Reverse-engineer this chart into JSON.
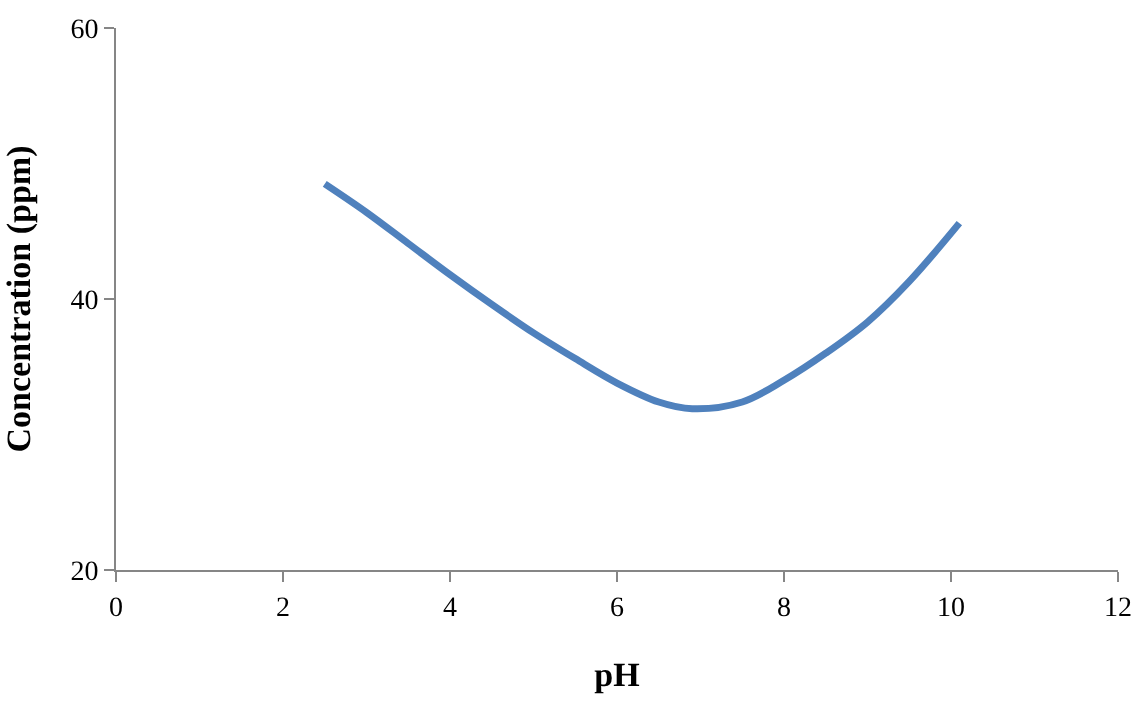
{
  "chart_data": {
    "type": "line",
    "xlabel": "pH",
    "ylabel": "Concentration (ppm)",
    "xlim": [
      0,
      12
    ],
    "xticks": [
      0,
      2,
      4,
      6,
      8,
      10,
      12
    ],
    "ylim": [
      20,
      60
    ],
    "yticks": [
      20,
      40,
      60
    ],
    "marker": "none",
    "line_style": "solid",
    "series": [
      {
        "color": "#4f81bd",
        "x": [
          2.5,
          3,
          3.5,
          4,
          4.5,
          5,
          5.5,
          6,
          6.5,
          6.9,
          7.5,
          8,
          8.5,
          9,
          9.5,
          10.1
        ],
        "values": [
          48.5,
          46.4,
          44.1,
          41.8,
          39.6,
          37.5,
          35.6,
          33.8,
          32.4,
          31.9,
          32.4,
          34.0,
          36.0,
          38.3,
          41.3,
          45.6
        ]
      }
    ]
  }
}
